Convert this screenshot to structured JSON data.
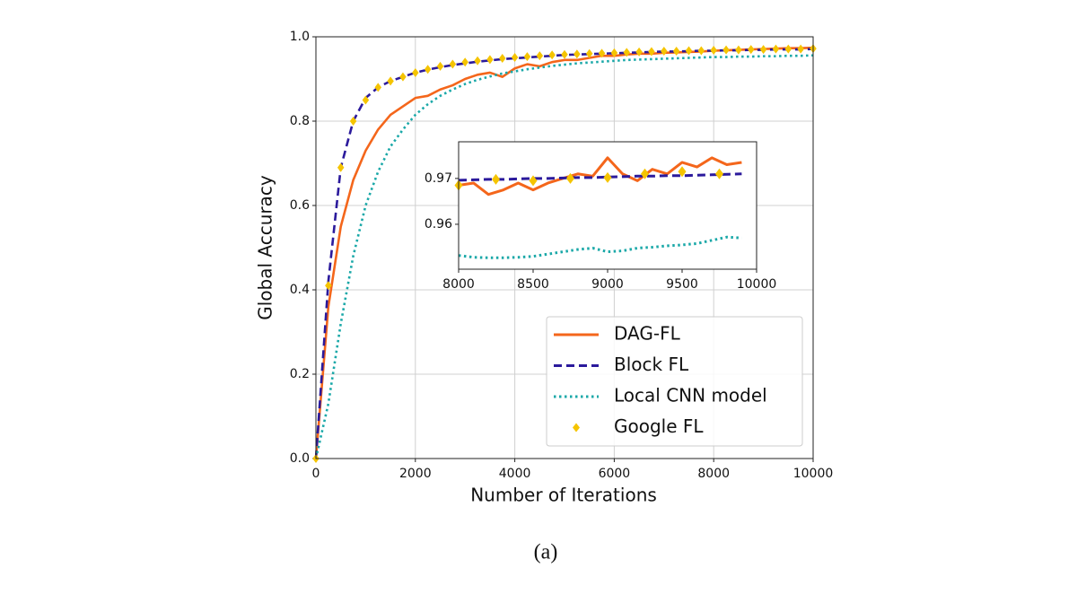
{
  "chart_data": [
    {
      "type": "line",
      "x_label": "Number of Iterations",
      "y_label": "Global Accuracy",
      "x": [
        0,
        250,
        500,
        750,
        1000,
        1250,
        1500,
        1750,
        2000,
        2250,
        2500,
        2750,
        3000,
        3250,
        3500,
        3750,
        4000,
        4250,
        4500,
        4750,
        5000,
        5250,
        5500,
        5750,
        6000,
        6250,
        6500,
        6750,
        7000,
        7250,
        7500,
        7750,
        8000,
        8250,
        8500,
        8750,
        9000,
        9250,
        9500,
        9750,
        10000
      ],
      "series": [
        {
          "name": "DAG-FL",
          "color": "#f4661b",
          "style": "solid",
          "values": [
            0,
            0.36,
            0.55,
            0.66,
            0.73,
            0.78,
            0.815,
            0.835,
            0.855,
            0.86,
            0.875,
            0.885,
            0.9,
            0.91,
            0.915,
            0.905,
            0.925,
            0.935,
            0.93,
            0.94,
            0.945,
            0.945,
            0.95,
            0.955,
            0.955,
            0.958,
            0.96,
            0.96,
            0.962,
            0.963,
            0.964,
            0.965,
            0.967,
            0.968,
            0.969,
            0.97,
            0.971,
            0.972,
            0.973,
            0.973,
            0.974
          ]
        },
        {
          "name": "Block FL",
          "color": "#2b1a9c",
          "style": "dashed",
          "values": [
            0,
            0.42,
            0.69,
            0.8,
            0.855,
            0.88,
            0.895,
            0.905,
            0.915,
            0.922,
            0.928,
            0.933,
            0.937,
            0.941,
            0.944,
            0.947,
            0.949,
            0.951,
            0.953,
            0.955,
            0.957,
            0.958,
            0.959,
            0.96,
            0.961,
            0.962,
            0.963,
            0.964,
            0.965,
            0.965,
            0.966,
            0.967,
            0.967,
            0.968,
            0.968,
            0.969,
            0.969,
            0.97,
            0.97,
            0.97,
            0.971
          ]
        },
        {
          "name": "Local CNN model",
          "color": "#1aa8a8",
          "style": "dotted",
          "values": [
            0,
            0.13,
            0.32,
            0.48,
            0.6,
            0.68,
            0.74,
            0.78,
            0.815,
            0.84,
            0.86,
            0.875,
            0.888,
            0.898,
            0.906,
            0.913,
            0.918,
            0.923,
            0.927,
            0.931,
            0.934,
            0.937,
            0.939,
            0.941,
            0.943,
            0.945,
            0.946,
            0.947,
            0.948,
            0.949,
            0.95,
            0.951,
            0.952,
            0.952,
            0.953,
            0.953,
            0.954,
            0.954,
            0.955,
            0.955,
            0.956
          ]
        },
        {
          "name": "Google FL",
          "color": "#f5c400",
          "style": "marker",
          "values": [
            0,
            0.41,
            0.69,
            0.8,
            0.85,
            0.88,
            0.895,
            0.905,
            0.915,
            0.923,
            0.93,
            0.935,
            0.94,
            0.943,
            0.946,
            0.949,
            0.951,
            0.953,
            0.955,
            0.957,
            0.958,
            0.959,
            0.96,
            0.961,
            0.962,
            0.963,
            0.964,
            0.965,
            0.966,
            0.966,
            0.967,
            0.967,
            0.968,
            0.969,
            0.969,
            0.97,
            0.97,
            0.971,
            0.971,
            0.971,
            0.972
          ]
        }
      ],
      "xlim": [
        0,
        10000
      ],
      "xticks": [
        0,
        2000,
        4000,
        6000,
        8000,
        10000
      ],
      "ylim": [
        0,
        1
      ],
      "yticks": [
        {
          "value": 0,
          "label": "0.0"
        },
        {
          "value": 0.2,
          "label": "0.2"
        },
        {
          "value": 0.4,
          "label": "0.4"
        },
        {
          "value": 0.6,
          "label": "0.6"
        },
        {
          "value": 0.8,
          "label": "0.8"
        },
        {
          "value": 1,
          "label": "1.0"
        }
      ],
      "grid": true,
      "legend": "lower right"
    },
    {
      "type": "line",
      "x": [
        8000,
        8100,
        8200,
        8300,
        8400,
        8500,
        8600,
        8700,
        8800,
        8900,
        9000,
        9100,
        9200,
        9300,
        9400,
        9500,
        9600,
        9700,
        9800,
        9900
      ],
      "series": [
        {
          "color": "#f4661b",
          "style": "solid",
          "values": [
            0.9685,
            0.969,
            0.9665,
            0.9675,
            0.969,
            0.9675,
            0.969,
            0.97,
            0.971,
            0.9705,
            0.9745,
            0.971,
            0.9695,
            0.972,
            0.971,
            0.9735,
            0.9725,
            0.9745,
            0.973,
            0.9735
          ]
        },
        {
          "color": "#2b1a9c",
          "style": "dashed",
          "values": [
            0.9696,
            0.9697,
            0.9698,
            0.9698,
            0.9699,
            0.97,
            0.97,
            0.9701,
            0.9702,
            0.9702,
            0.9703,
            0.9704,
            0.9705,
            0.9705,
            0.9706,
            0.9706,
            0.9707,
            0.9708,
            0.9709,
            0.971
          ]
        },
        {
          "color": "#1aa8a8",
          "style": "dotted",
          "values": [
            0.9532,
            0.9528,
            0.9527,
            0.9527,
            0.9528,
            0.953,
            0.9535,
            0.954,
            0.9545,
            0.9548,
            0.954,
            0.9542,
            0.9548,
            0.955,
            0.9553,
            0.9555,
            0.9558,
            0.9565,
            0.9572,
            0.957
          ]
        },
        {
          "color": "#f5c400",
          "style": "marker",
          "x": [
            8000,
            8250,
            8500,
            8750,
            9000,
            9250,
            9500,
            9750
          ],
          "values": [
            0.9685,
            0.9698,
            0.9695,
            0.97,
            0.9702,
            0.971,
            0.9715,
            0.971
          ]
        }
      ],
      "xlim": [
        8000,
        10000
      ],
      "xticks": [
        8000,
        8500,
        9000,
        9500,
        10000
      ],
      "ylim": [
        0.9502,
        0.978
      ],
      "yticks": [
        0.96,
        0.97
      ],
      "grid": false
    }
  ],
  "caption": "(a)"
}
